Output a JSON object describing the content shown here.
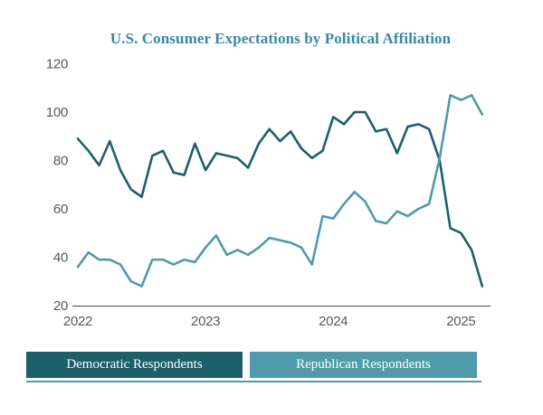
{
  "chart_data": {
    "type": "line",
    "title": "U.S. Consumer Expectations by Political Affiliation",
    "grid": false,
    "legend_position": "bottom",
    "ylim": [
      20,
      120
    ],
    "y_ticks": [
      20,
      40,
      60,
      80,
      100,
      120
    ],
    "x_year_ticks": [
      {
        "label": "2022",
        "month_index": 0
      },
      {
        "label": "2023",
        "month_index": 12
      },
      {
        "label": "2024",
        "month_index": 24
      },
      {
        "label": "2025",
        "month_index": 36
      }
    ],
    "x_months": [
      "Jan 2022",
      "Feb 2022",
      "Mar 2022",
      "Apr 2022",
      "May 2022",
      "Jun 2022",
      "Jul 2022",
      "Aug 2022",
      "Sep 2022",
      "Oct 2022",
      "Nov 2022",
      "Dec 2022",
      "Jan 2023",
      "Feb 2023",
      "Mar 2023",
      "Apr 2023",
      "May 2023",
      "Jun 2023",
      "Jul 2023",
      "Aug 2023",
      "Sep 2023",
      "Oct 2023",
      "Nov 2023",
      "Dec 2023",
      "Jan 2024",
      "Feb 2024",
      "Mar 2024",
      "Apr 2024",
      "May 2024",
      "Jun 2024",
      "Jul 2024",
      "Aug 2024",
      "Sep 2024",
      "Oct 2024",
      "Nov 2024",
      "Dec 2024",
      "Jan 2025",
      "Feb 2025",
      "Mar 2025"
    ],
    "series": [
      {
        "name": "Democratic Respondents",
        "color": "#1d5f6a",
        "values": [
          89,
          84,
          78,
          88,
          76,
          68,
          65,
          82,
          84,
          75,
          74,
          87,
          76,
          83,
          82,
          81,
          77,
          87,
          93,
          88,
          92,
          85,
          81,
          84,
          98,
          95,
          100,
          100,
          92,
          93,
          83,
          94,
          95,
          93,
          80,
          52,
          50,
          43,
          28
        ]
      },
      {
        "name": "Republican Respondents",
        "color": "#4f9bab",
        "values": [
          36,
          42,
          39,
          39,
          37,
          30,
          28,
          39,
          39,
          37,
          39,
          38,
          44,
          49,
          41,
          43,
          41,
          44,
          48,
          47,
          46,
          44,
          37,
          57,
          56,
          62,
          67,
          63,
          55,
          54,
          59,
          57,
          60,
          62,
          81,
          107,
          105,
          107,
          99
        ]
      }
    ]
  },
  "colors": {
    "title": "#3788a6",
    "axis_text": "#58595a",
    "axis_line": "#4d4d4d",
    "legend_text": "#ffffff",
    "legend_underline": "#4f9bab",
    "background": "#ffffff"
  }
}
